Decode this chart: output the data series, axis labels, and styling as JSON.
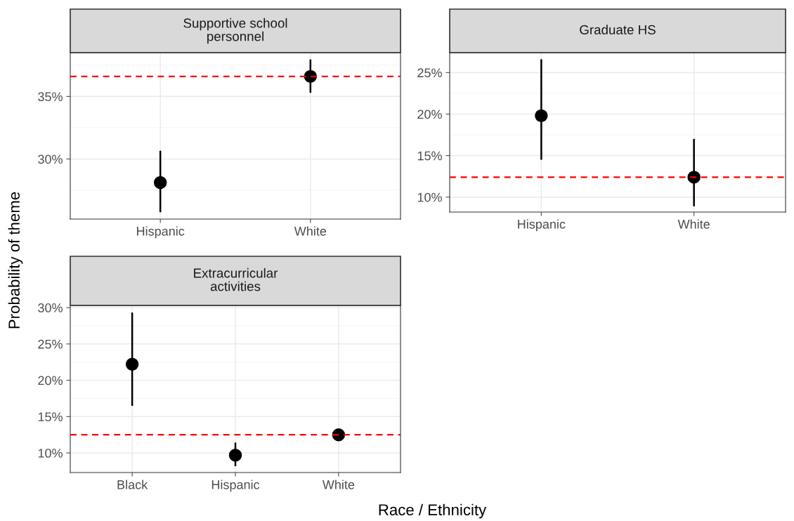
{
  "chart_data": [
    {
      "type": "scatter",
      "title": "Supportive school\npersonnel",
      "ylabel": "Probability of theme",
      "categories": [
        "Hispanic",
        "White"
      ],
      "series": [
        {
          "color": "#000000",
          "values": [
            28.12,
            36.6
          ],
          "errors": [
            [
              25.82,
              30.59
            ],
            [
              35.36,
              37.89
            ]
          ]
        }
      ],
      "ylim": [
        25.2,
        38.5
      ],
      "yticks": [
        {
          "value": 30,
          "label": "30%"
        },
        {
          "value": 35,
          "label": "35%"
        }
      ],
      "ref_lines": [
        {
          "axis": "y",
          "value": 36.6,
          "color": "#ff0000",
          "line_style": "dashed"
        }
      ],
      "grid": true,
      "marker": "circle"
    },
    {
      "type": "scatter",
      "title": "Graduate HS",
      "categories": [
        "Hispanic",
        "White"
      ],
      "series": [
        {
          "color": "#000000",
          "values": [
            19.8,
            12.4
          ],
          "errors": [
            [
              14.6,
              26.5
            ],
            [
              9.0,
              16.9
            ]
          ]
        }
      ],
      "ylim": [
        8.2,
        27.4
      ],
      "yticks": [
        {
          "value": 10,
          "label": "10%"
        },
        {
          "value": 15,
          "label": "15%"
        },
        {
          "value": 20,
          "label": "20%"
        },
        {
          "value": 25,
          "label": "25%"
        }
      ],
      "ref_lines": [
        {
          "axis": "y",
          "value": 12.4,
          "color": "#ff0000",
          "line_style": "dashed"
        }
      ],
      "grid": true,
      "marker": "circle"
    },
    {
      "type": "scatter",
      "title": "Extracurricular\nactivities",
      "xlabel": "Race / Ethnicity",
      "categories": [
        "Black",
        "Hispanic",
        "White"
      ],
      "series": [
        {
          "color": "#000000",
          "values": [
            22.2,
            9.7,
            12.5
          ],
          "errors": [
            [
              16.6,
              29.2
            ],
            [
              8.3,
              11.3
            ],
            null
          ]
        }
      ],
      "ylim": [
        7.3,
        30.3
      ],
      "yticks": [
        {
          "value": 10,
          "label": "10%"
        },
        {
          "value": 15,
          "label": "15%"
        },
        {
          "value": 20,
          "label": "20%"
        },
        {
          "value": 25,
          "label": "25%"
        },
        {
          "value": 30,
          "label": "30%"
        }
      ],
      "ref_lines": [
        {
          "axis": "y",
          "value": 12.5,
          "color": "#ff0000",
          "line_style": "dashed"
        }
      ],
      "grid": true,
      "marker": "circle"
    }
  ]
}
